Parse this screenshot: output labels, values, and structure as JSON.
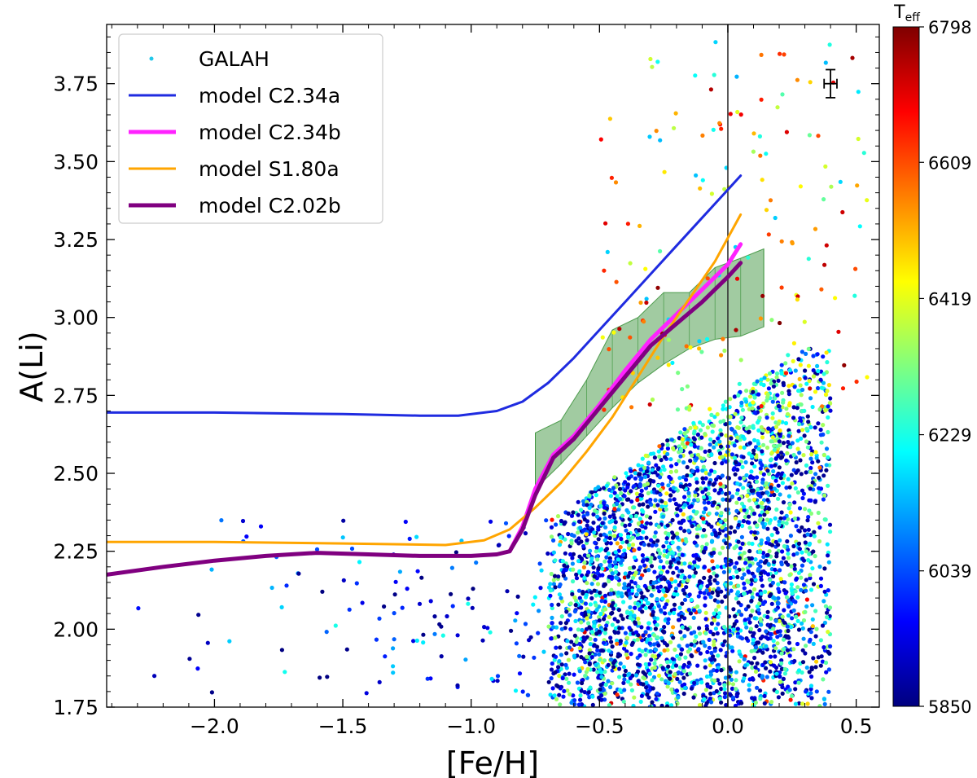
{
  "chart_data": {
    "type": "scatter",
    "title": "",
    "xlabel": "[Fe/H]",
    "ylabel": "A(Li)",
    "xlim": [
      -2.42,
      0.59
    ],
    "ylim": [
      1.75,
      3.94
    ],
    "xticks": [
      -2.0,
      -1.5,
      -1.0,
      -0.5,
      0.0,
      0.5
    ],
    "xtick_labels": [
      "−2.0",
      "−1.5",
      "−1.0",
      "−0.5",
      "0.0",
      "0.5"
    ],
    "yticks": [
      1.75,
      2.0,
      2.25,
      2.5,
      2.75,
      3.0,
      3.25,
      3.5,
      3.75
    ],
    "ytick_labels": [
      "1.75",
      "2.00",
      "2.25",
      "2.50",
      "2.75",
      "3.00",
      "3.25",
      "3.50",
      "3.75"
    ],
    "vertical_line_x": 0.0,
    "legend_position": "upper-left",
    "scatter": {
      "name": "GALAH",
      "color_variable": "Teff",
      "color_range": [
        5850,
        6798
      ],
      "bulk_region": {
        "feh_range": [
          -0.7,
          0.4
        ],
        "ali_range": [
          1.75,
          2.9
        ],
        "count": 3400
      },
      "tail_region": {
        "feh_range": [
          -2.3,
          -0.7
        ],
        "ali_range": [
          1.78,
          2.35
        ],
        "count": 130
      },
      "upper_region": {
        "feh_range": [
          -0.5,
          0.55
        ],
        "ali_range": [
          2.7,
          3.9
        ],
        "count": 170
      }
    },
    "series": [
      {
        "name": "model C2.34a",
        "color": "#1f2be0",
        "linewidth": "thin",
        "x": [
          -2.42,
          -2.0,
          -1.5,
          -1.2,
          -1.05,
          -0.9,
          -0.8,
          -0.7,
          -0.6,
          -0.5,
          -0.4,
          -0.3,
          -0.2,
          -0.1,
          0.0,
          0.05
        ],
        "y": [
          2.695,
          2.695,
          2.69,
          2.685,
          2.685,
          2.7,
          2.73,
          2.79,
          2.87,
          2.96,
          3.05,
          3.14,
          3.23,
          3.32,
          3.41,
          3.455
        ]
      },
      {
        "name": "model C2.34b",
        "color": "#ff22ff",
        "linewidth": "thick",
        "x": [
          -0.85,
          -0.8,
          -0.75,
          -0.68,
          -0.6,
          -0.5,
          -0.4,
          -0.3,
          -0.2,
          -0.1,
          0.0,
          0.05
        ],
        "y": [
          2.25,
          2.33,
          2.45,
          2.56,
          2.62,
          2.72,
          2.83,
          2.93,
          3.01,
          3.09,
          3.17,
          3.235
        ]
      },
      {
        "name": "model S1.80a",
        "color": "#ffa500",
        "linewidth": "thin",
        "x": [
          -2.42,
          -2.0,
          -1.5,
          -1.1,
          -0.95,
          -0.85,
          -0.75,
          -0.65,
          -0.55,
          -0.45,
          -0.35,
          -0.25,
          -0.15,
          -0.05,
          0.05
        ],
        "y": [
          2.28,
          2.28,
          2.275,
          2.27,
          2.285,
          2.32,
          2.39,
          2.47,
          2.57,
          2.68,
          2.81,
          2.94,
          3.06,
          3.18,
          3.33
        ]
      },
      {
        "name": "model C2.02b",
        "color": "#800080",
        "linewidth": "thick",
        "x": [
          -2.42,
          -2.2,
          -2.0,
          -1.8,
          -1.6,
          -1.4,
          -1.2,
          -1.0,
          -0.9,
          -0.85,
          -0.8,
          -0.75,
          -0.68,
          -0.6,
          -0.5,
          -0.4,
          -0.3,
          -0.2,
          -0.1,
          0.0,
          0.05
        ],
        "y": [
          2.175,
          2.2,
          2.22,
          2.235,
          2.245,
          2.24,
          2.235,
          2.235,
          2.24,
          2.25,
          2.32,
          2.43,
          2.55,
          2.61,
          2.71,
          2.81,
          2.91,
          2.98,
          3.05,
          3.13,
          3.175
        ]
      }
    ],
    "shaded_band": {
      "color": "#2e8b2e",
      "opacity": 0.45,
      "x": [
        -0.75,
        -0.65,
        -0.55,
        -0.45,
        -0.35,
        -0.25,
        -0.15,
        -0.05,
        0.05,
        0.14
      ],
      "upper": [
        2.63,
        2.67,
        2.8,
        2.96,
        3.0,
        3.08,
        3.08,
        3.16,
        3.19,
        3.22
      ],
      "lower": [
        2.45,
        2.53,
        2.62,
        2.71,
        2.79,
        2.85,
        2.9,
        2.93,
        2.94,
        2.97
      ]
    },
    "error_bar": {
      "x": 0.4,
      "y": 3.75,
      "x_err": 0.025,
      "y_err": 0.045
    },
    "colorbar": {
      "label": "T",
      "label_subscript": "eff",
      "min": 5850,
      "max": 6798,
      "ticks": [
        5850,
        6039,
        6229,
        6419,
        6609,
        6798
      ],
      "colormap": "jet"
    }
  }
}
